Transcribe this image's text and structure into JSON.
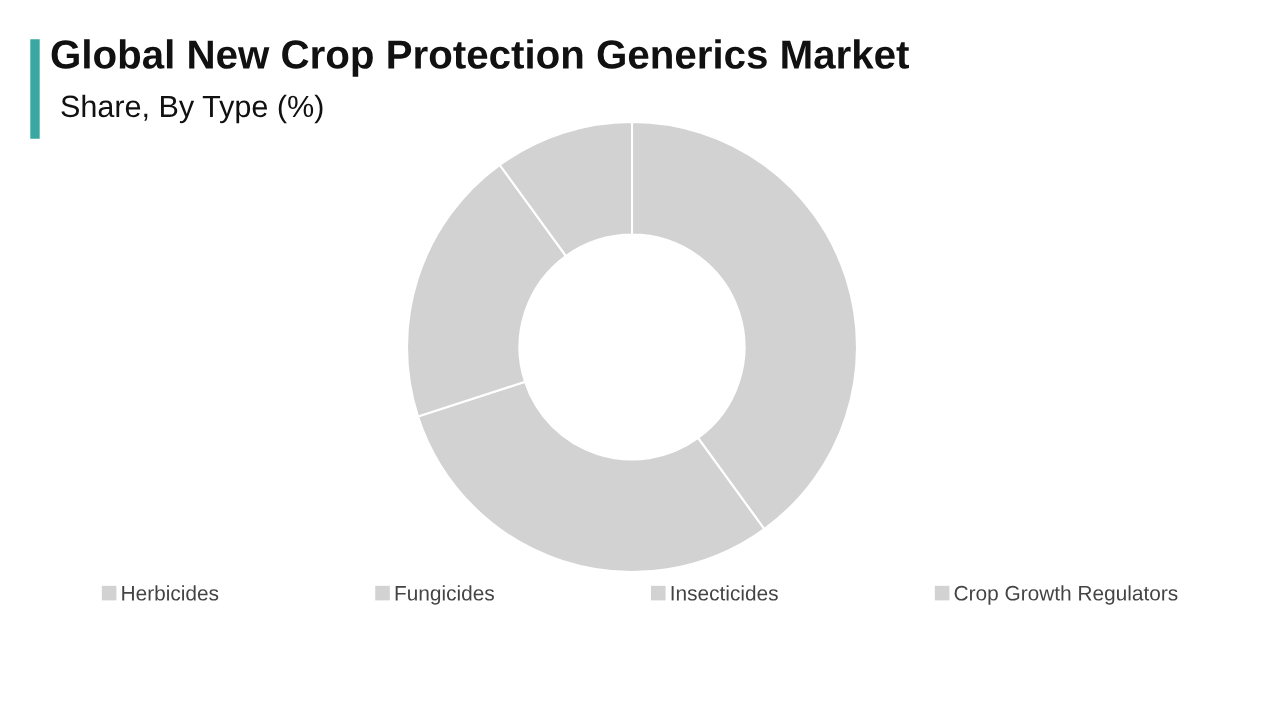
{
  "chart_data": {
    "type": "donut",
    "title": "Global New Crop Protection Generics Market",
    "subtitle": "Share, By Type (%)",
    "categories": [
      "Herbicides",
      "Fungicides",
      "Insecticides",
      "Crop Growth Regulators"
    ],
    "values": [
      40,
      30,
      20,
      10
    ],
    "colors": [
      "#d3d2d3",
      "#d3d2d3",
      "#d3d2d3",
      "#d3d2d3"
    ],
    "legend": "bottom"
  }
}
